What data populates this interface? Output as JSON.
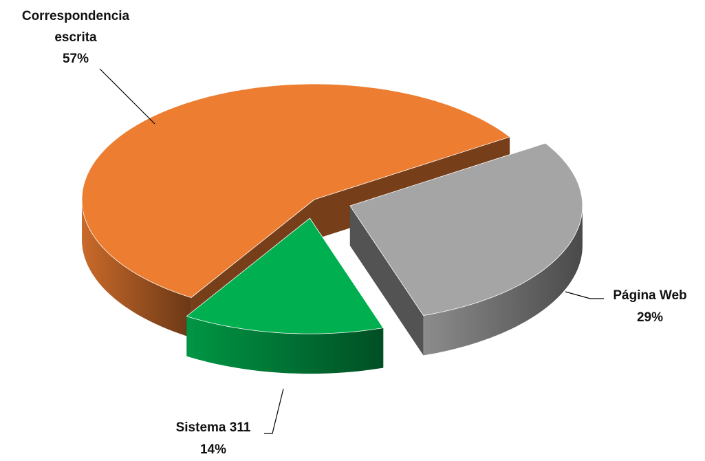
{
  "chart_data": {
    "type": "pie3d",
    "categories": [
      "Correspondencia escrita",
      "Página Web",
      "Sistema 311"
    ],
    "values": [
      57,
      29,
      14
    ],
    "value_labels": [
      "57%",
      "29%",
      "14%"
    ],
    "colors": [
      "#ed7d31",
      "#a5a5a5",
      "#00b050"
    ]
  }
}
